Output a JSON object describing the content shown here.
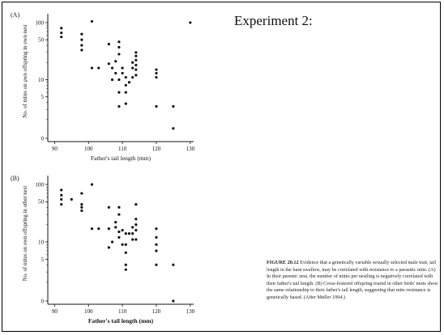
{
  "slide": {
    "heading": "Experiment 2:"
  },
  "caption": {
    "lead": "FIGURE 20.12",
    "text": "Evidence that a genetically variable sexually selected male trait, tail length in the barn swallow, may be correlated with resistance to a parasitic mite. (A) In their parents' nest, the number of mites per nestling is negatively correlated with their father's tail length. (B) Cross-fostered offspring reared in other birds' nests show the same relationship to their father's tail length, suggesting that mite resistance is genetically based. (After Møller 1994.)"
  },
  "chart_data": [
    {
      "panel": "(A)",
      "type": "scatter",
      "xlabel": "Father's tail length (mm)",
      "ylabel": "No. of mites on own offspring in own nest",
      "xlim": [
        88,
        131
      ],
      "x_ticks": [
        90,
        100,
        110,
        120,
        130
      ],
      "y_scale": "log",
      "y_ticks": [
        {
          "value": 0,
          "label": "0"
        },
        {
          "value": 5,
          "label": "5"
        },
        {
          "value": 10,
          "label": "10"
        },
        {
          "value": 50,
          "label": "50"
        },
        {
          "value": 100,
          "label": "100"
        }
      ],
      "points": [
        {
          "x": 92,
          "y": 80
        },
        {
          "x": 92,
          "y": 66
        },
        {
          "x": 92,
          "y": 56
        },
        {
          "x": 98,
          "y": 63
        },
        {
          "x": 98,
          "y": 50
        },
        {
          "x": 98,
          "y": 40
        },
        {
          "x": 98,
          "y": 33
        },
        {
          "x": 101,
          "y": 105
        },
        {
          "x": 101,
          "y": 16
        },
        {
          "x": 103,
          "y": 16
        },
        {
          "x": 106,
          "y": 19
        },
        {
          "x": 106,
          "y": 42
        },
        {
          "x": 107,
          "y": 16
        },
        {
          "x": 107,
          "y": 10
        },
        {
          "x": 108,
          "y": 21
        },
        {
          "x": 108,
          "y": 13
        },
        {
          "x": 109,
          "y": 46
        },
        {
          "x": 109,
          "y": 37
        },
        {
          "x": 109,
          "y": 28
        },
        {
          "x": 109,
          "y": 10
        },
        {
          "x": 109,
          "y": 6
        },
        {
          "x": 109,
          "y": 3.4
        },
        {
          "x": 110,
          "y": 16
        },
        {
          "x": 110,
          "y": 13
        },
        {
          "x": 111,
          "y": 11
        },
        {
          "x": 111,
          "y": 8
        },
        {
          "x": 111,
          "y": 6
        },
        {
          "x": 111,
          "y": 3.8
        },
        {
          "x": 112,
          "y": 9
        },
        {
          "x": 113,
          "y": 20
        },
        {
          "x": 113,
          "y": 16
        },
        {
          "x": 113,
          "y": 11
        },
        {
          "x": 114,
          "y": 30
        },
        {
          "x": 114,
          "y": 26
        },
        {
          "x": 114,
          "y": 22
        },
        {
          "x": 114,
          "y": 18
        },
        {
          "x": 114,
          "y": 15
        },
        {
          "x": 114,
          "y": 12
        },
        {
          "x": 120,
          "y": 15
        },
        {
          "x": 120,
          "y": 13
        },
        {
          "x": 120,
          "y": 11
        },
        {
          "x": 120,
          "y": 3.4
        },
        {
          "x": 125,
          "y": 3.4
        },
        {
          "x": 125,
          "y": 1.4
        },
        {
          "x": 130,
          "y": 100
        }
      ]
    },
    {
      "panel": "(B)",
      "type": "scatter",
      "xlabel": "Father's tail length (mm)",
      "ylabel": "No. of mites on own offspring in other nest",
      "xlim": [
        88,
        131
      ],
      "x_ticks": [
        90,
        100,
        110,
        120,
        130
      ],
      "y_scale": "log",
      "y_ticks": [
        {
          "value": 0,
          "label": "0"
        },
        {
          "value": 5,
          "label": "5"
        },
        {
          "value": 10,
          "label": "10"
        },
        {
          "value": 50,
          "label": "50"
        },
        {
          "value": 100,
          "label": "100"
        }
      ],
      "points": [
        {
          "x": 92,
          "y": 80
        },
        {
          "x": 92,
          "y": 65
        },
        {
          "x": 92,
          "y": 55
        },
        {
          "x": 92,
          "y": 45
        },
        {
          "x": 95,
          "y": 55
        },
        {
          "x": 98,
          "y": 70
        },
        {
          "x": 98,
          "y": 45
        },
        {
          "x": 98,
          "y": 40
        },
        {
          "x": 98,
          "y": 35
        },
        {
          "x": 101,
          "y": 100
        },
        {
          "x": 101,
          "y": 17
        },
        {
          "x": 103,
          "y": 17
        },
        {
          "x": 106,
          "y": 40
        },
        {
          "x": 106,
          "y": 17
        },
        {
          "x": 106,
          "y": 8
        },
        {
          "x": 107,
          "y": 10
        },
        {
          "x": 108,
          "y": 22
        },
        {
          "x": 108,
          "y": 18
        },
        {
          "x": 109,
          "y": 40
        },
        {
          "x": 109,
          "y": 30
        },
        {
          "x": 109,
          "y": 15
        },
        {
          "x": 109,
          "y": 12
        },
        {
          "x": 110,
          "y": 16
        },
        {
          "x": 110,
          "y": 9
        },
        {
          "x": 111,
          "y": 14
        },
        {
          "x": 111,
          "y": 9
        },
        {
          "x": 111,
          "y": 6.5
        },
        {
          "x": 111,
          "y": 4
        },
        {
          "x": 111,
          "y": 3.3
        },
        {
          "x": 112,
          "y": 14
        },
        {
          "x": 113,
          "y": 18
        },
        {
          "x": 113,
          "y": 14
        },
        {
          "x": 113,
          "y": 11
        },
        {
          "x": 114,
          "y": 45
        },
        {
          "x": 114,
          "y": 25
        },
        {
          "x": 114,
          "y": 20
        },
        {
          "x": 114,
          "y": 16
        },
        {
          "x": 114,
          "y": 11
        },
        {
          "x": 120,
          "y": 17
        },
        {
          "x": 120,
          "y": 12
        },
        {
          "x": 120,
          "y": 9
        },
        {
          "x": 120,
          "y": 7
        },
        {
          "x": 120,
          "y": 4
        },
        {
          "x": 125,
          "y": 4
        },
        {
          "x": 125,
          "y": 0
        }
      ]
    }
  ]
}
